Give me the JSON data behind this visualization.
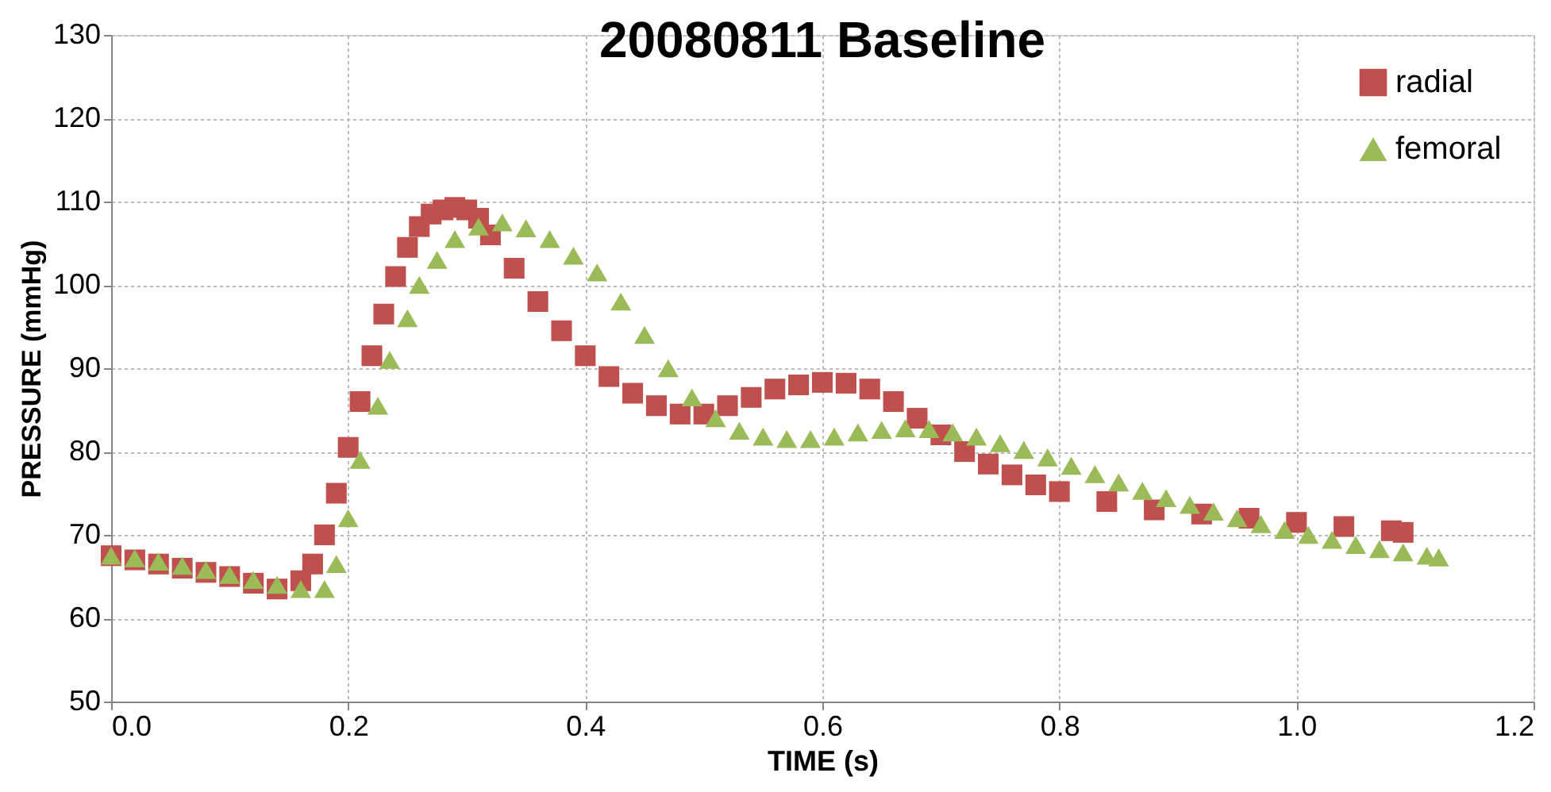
{
  "chart_data": {
    "type": "scatter",
    "title": "20080811 Baseline",
    "xlabel": "TIME (s)",
    "ylabel": "PRESSURE (mmHg)",
    "xlim": [
      0,
      1.2
    ],
    "xticks": [
      {
        "value": 0,
        "label": "0.0"
      },
      0.2,
      0.4,
      0.6,
      0.8,
      {
        "value": 1,
        "label": "1.0"
      },
      1.2
    ],
    "ylim": [
      50,
      130
    ],
    "yticks": [
      50,
      60,
      70,
      80,
      90,
      100,
      110,
      120,
      130
    ],
    "grid": true,
    "legend": "top right",
    "series": [
      {
        "name": "radial",
        "color": "#c0504d",
        "marker": "square",
        "x": [
          0,
          0.02,
          0.04,
          0.06,
          0.08,
          0.1,
          0.12,
          0.14,
          0.16,
          0.17,
          0.18,
          0.19,
          0.2,
          0.21,
          0.22,
          0.23,
          0.24,
          0.25,
          0.26,
          0.27,
          0.28,
          0.29,
          0.3,
          0.31,
          0.32,
          0.34,
          0.36,
          0.38,
          0.4,
          0.42,
          0.44,
          0.46,
          0.48,
          0.5,
          0.52,
          0.54,
          0.56,
          0.58,
          0.6,
          0.62,
          0.64,
          0.66,
          0.68,
          0.7,
          0.72,
          0.74,
          0.76,
          0.78,
          0.8,
          0.84,
          0.88,
          0.92,
          0.96,
          1.0,
          1.04,
          1.08,
          1.09
        ],
        "values": [
          67.5,
          67,
          66.5,
          66,
          65.5,
          65,
          64.2,
          63.5,
          64.5,
          66.5,
          70,
          75,
          80.5,
          86,
          91.5,
          96.5,
          101,
          104.5,
          107,
          108.5,
          109,
          109.3,
          109,
          108,
          106,
          102,
          98,
          94.5,
          91.5,
          89,
          87,
          85.5,
          84.5,
          84.5,
          85.5,
          86.5,
          87.5,
          88,
          88.3,
          88.2,
          87.5,
          86,
          84,
          82,
          80,
          78.5,
          77.2,
          76,
          75.2,
          74,
          73,
          72.5,
          72,
          71.5,
          71,
          70.5,
          70.3
        ]
      },
      {
        "name": "femoral",
        "color": "#9bbb59",
        "marker": "triangle",
        "x": [
          0,
          0.02,
          0.04,
          0.06,
          0.08,
          0.1,
          0.12,
          0.14,
          0.16,
          0.18,
          0.19,
          0.2,
          0.21,
          0.225,
          0.235,
          0.25,
          0.26,
          0.275,
          0.29,
          0.31,
          0.33,
          0.35,
          0.37,
          0.39,
          0.41,
          0.43,
          0.45,
          0.47,
          0.49,
          0.51,
          0.53,
          0.55,
          0.57,
          0.59,
          0.61,
          0.63,
          0.65,
          0.67,
          0.69,
          0.71,
          0.73,
          0.75,
          0.77,
          0.79,
          0.81,
          0.83,
          0.85,
          0.87,
          0.89,
          0.91,
          0.93,
          0.95,
          0.97,
          0.99,
          1.01,
          1.03,
          1.05,
          1.07,
          1.09,
          1.11,
          1.12
        ],
        "values": [
          67.5,
          67.2,
          66.8,
          66.3,
          65.8,
          65.2,
          64.6,
          64,
          63.5,
          63.5,
          66.5,
          72,
          79,
          85.5,
          91,
          96,
          100,
          103,
          105.5,
          107,
          107.5,
          106.8,
          105.5,
          103.5,
          101.5,
          98,
          94,
          90,
          86.5,
          84,
          82.5,
          81.8,
          81.5,
          81.5,
          81.8,
          82.3,
          82.6,
          82.8,
          82.7,
          82.3,
          81.8,
          81,
          80.2,
          79.3,
          78.3,
          77.3,
          76.3,
          75.3,
          74.4,
          73.6,
          72.8,
          72,
          71.3,
          70.6,
          70,
          69.4,
          68.8,
          68.3,
          67.9,
          67.5,
          67.3
        ]
      }
    ]
  }
}
